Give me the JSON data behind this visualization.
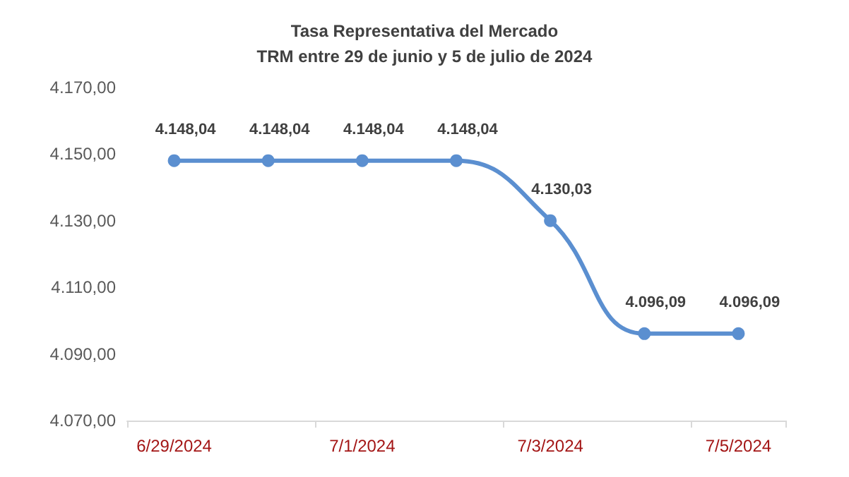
{
  "chart_data": {
    "type": "line",
    "title": "Tasa Representativa del Mercado\nTRM entre 29 de junio y 5 de julio de 2024",
    "categories": [
      "6/29/2024",
      null,
      "7/1/2024",
      null,
      "7/3/2024",
      null,
      "7/5/2024"
    ],
    "series": [
      {
        "color": "#5b8fd0",
        "values": [
          4148.04,
          4148.04,
          4148.04,
          4148.04,
          4130.03,
          4096.09,
          4096.09
        ],
        "value_labels": [
          "4.148,04",
          "4.148,04",
          "4.148,04",
          "4.148,04",
          "4.130,03",
          "4.096,09",
          "4.096,09"
        ]
      }
    ],
    "ylim": [
      4070,
      4170
    ],
    "yticks": [
      {
        "value": 4070,
        "label": "4.070,00"
      },
      {
        "value": 4090,
        "label": "4.090,00"
      },
      {
        "value": 4110,
        "label": "4.110,00"
      },
      {
        "value": 4130,
        "label": "4.130,00"
      },
      {
        "value": 4150,
        "label": "4.150,00"
      },
      {
        "value": 4170,
        "label": "4.170,00"
      }
    ],
    "grid": false,
    "marker": "circle",
    "line_style": "solid"
  }
}
